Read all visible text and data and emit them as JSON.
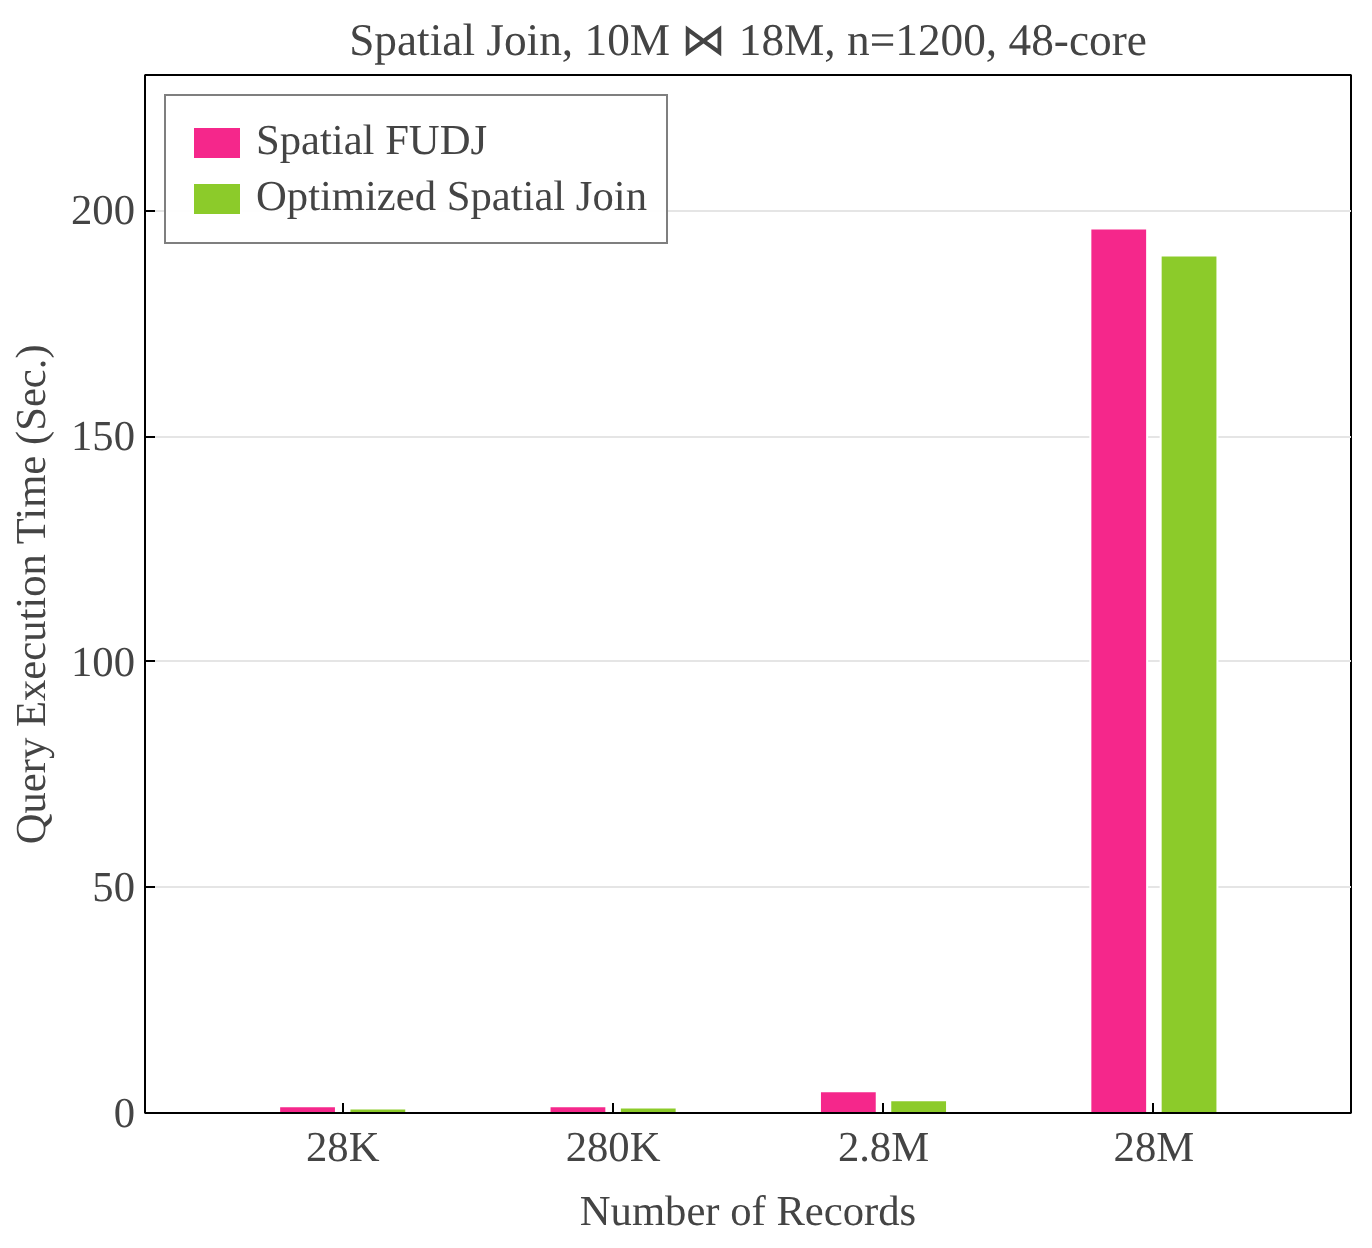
{
  "chart_data": {
    "type": "bar",
    "title": "Spatial Join, 10M ⋈ 18M, n=1200, 48-core",
    "xlabel": "Number of Records",
    "ylabel": "Query Execution Time (Sec.)",
    "x": [
      28000,
      280000,
      2800000,
      28000000
    ],
    "log": "x",
    "xlim": [
      5200,
      150000000
    ],
    "xticks": [
      {
        "value": 28000,
        "label": "28K"
      },
      {
        "value": 280000,
        "label": "280K"
      },
      {
        "value": 2800000,
        "label": "2.8M"
      },
      {
        "value": 28000000,
        "label": "28M"
      }
    ],
    "ylim": [
      0,
      230
    ],
    "yticks": [
      0,
      50,
      100,
      150,
      200
    ],
    "grid": "y",
    "legend": "top left",
    "series": [
      {
        "name": "Spatial FUDJ",
        "color": "#f5278b",
        "values": [
          1.5,
          1.5,
          4.8,
          196
        ]
      },
      {
        "name": "Optimized Spatial Join",
        "color": "#8ccb2a",
        "values": [
          1.0,
          1.2,
          2.8,
          190
        ]
      }
    ]
  }
}
